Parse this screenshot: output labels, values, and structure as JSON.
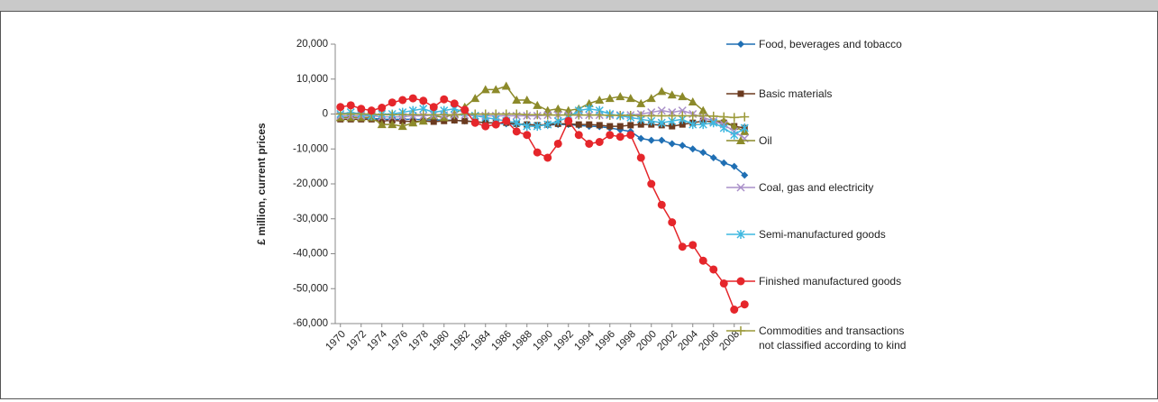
{
  "chart_data": {
    "type": "line",
    "y_label": "£ million, current prices",
    "x": [
      1970,
      1971,
      1972,
      1973,
      1974,
      1975,
      1976,
      1977,
      1978,
      1979,
      1980,
      1981,
      1982,
      1983,
      1984,
      1985,
      1986,
      1987,
      1988,
      1989,
      1990,
      1991,
      1992,
      1993,
      1994,
      1995,
      1996,
      1997,
      1998,
      1999,
      2000,
      2001,
      2002,
      2003,
      2004,
      2005,
      2006,
      2007,
      2008,
      2009
    ],
    "xlim": [
      1969.5,
      2009.5
    ],
    "xticks": [
      1970,
      1972,
      1974,
      1976,
      1978,
      1980,
      1982,
      1984,
      1986,
      1988,
      1990,
      1992,
      1994,
      1996,
      1998,
      2000,
      2002,
      2004,
      2006,
      2008
    ],
    "ylim": [
      -60000,
      20000
    ],
    "yticks": [
      {
        "value": -60000,
        "label": "-60,000"
      },
      {
        "value": -50000,
        "label": "-50,000"
      },
      {
        "value": -40000,
        "label": "-40,000"
      },
      {
        "value": -30000,
        "label": "-30,000"
      },
      {
        "value": -20000,
        "label": "-20,000"
      },
      {
        "value": -10000,
        "label": "-10,000"
      },
      0,
      {
        "value": 10000,
        "label": "10,000"
      },
      {
        "value": 20000,
        "label": "20,000"
      }
    ],
    "series": [
      {
        "name": "Food, beverages and tobacco",
        "color": "#1f6fb4",
        "marker": "diamond",
        "values": [
          -1000,
          -1000,
          -1000,
          -1200,
          -1500,
          -1500,
          -1500,
          -1500,
          -1600,
          -1700,
          -1700,
          -1800,
          -2000,
          -2200,
          -2500,
          -2600,
          -2800,
          -3000,
          -3000,
          -3200,
          -3200,
          -3000,
          -3000,
          -3300,
          -3500,
          -3600,
          -4000,
          -4500,
          -5000,
          -7000,
          -7500,
          -7500,
          -8500,
          -9000,
          -10000,
          -11000,
          -12500,
          -14000,
          -15000,
          -17500
        ]
      },
      {
        "name": "Basic materials",
        "color": "#6b3a1f",
        "marker": "square",
        "values": [
          -1500,
          -1500,
          -1500,
          -1500,
          -2000,
          -1800,
          -2000,
          -2200,
          -2000,
          -2200,
          -2000,
          -1800,
          -2000,
          -2200,
          -2500,
          -2500,
          -2500,
          -2800,
          -3000,
          -3200,
          -3000,
          -2800,
          -2800,
          -3000,
          -3000,
          -3200,
          -3500,
          -3500,
          -3200,
          -3000,
          -3000,
          -3200,
          -3500,
          -3000,
          -2500,
          -2000,
          -2200,
          -2500,
          -3500,
          -4000
        ]
      },
      {
        "name": "Oil",
        "color": "#8c8a2a",
        "marker": "triangle",
        "values": [
          -1000,
          -1000,
          -1000,
          -1000,
          -3000,
          -3000,
          -3500,
          -2500,
          -2000,
          -500,
          -1000,
          0,
          2000,
          4500,
          7000,
          7000,
          8000,
          4000,
          4000,
          2500,
          1000,
          1500,
          1000,
          1500,
          3000,
          4000,
          4500,
          5000,
          4500,
          3000,
          4500,
          6500,
          5500,
          5000,
          3500,
          1000,
          -2000,
          -2000,
          -3500,
          -5000
        ]
      },
      {
        "name": "Coal, gas and electricity",
        "color": "#a98fc9",
        "marker": "x",
        "values": [
          -500,
          -500,
          -500,
          -500,
          -800,
          -800,
          -800,
          -500,
          -500,
          -300,
          -300,
          -300,
          -300,
          -500,
          -500,
          -500,
          -500,
          -500,
          -500,
          -500,
          -300,
          -300,
          -300,
          -300,
          -300,
          -300,
          -300,
          -300,
          -300,
          0,
          500,
          1000,
          500,
          1000,
          0,
          -1000,
          -2000,
          -3000,
          -5000,
          -7000
        ]
      },
      {
        "name": "Semi-manufactured goods",
        "color": "#3fb8e0",
        "marker": "asterisk",
        "values": [
          0,
          500,
          0,
          -500,
          0,
          0,
          500,
          1000,
          1500,
          500,
          1000,
          1500,
          500,
          -500,
          -1000,
          -1500,
          -2000,
          -2500,
          -3500,
          -3500,
          -3000,
          -2000,
          -1000,
          1000,
          1500,
          1000,
          0,
          -500,
          -1000,
          -1500,
          -2000,
          -2500,
          -2000,
          -1500,
          -3000,
          -3000,
          -2500,
          -4000,
          -6000,
          -4000
        ]
      },
      {
        "name": "Finished manufactured goods",
        "color": "#e5262b",
        "marker": "circle",
        "values": [
          2000,
          2500,
          1500,
          1000,
          1800,
          3300,
          4000,
          4500,
          3800,
          2000,
          4200,
          3000,
          1200,
          -2500,
          -3500,
          -3000,
          -2000,
          -5000,
          -6000,
          -11000,
          -12500,
          -8500,
          -2000,
          -6000,
          -8500,
          -8000,
          -6000,
          -6500,
          -6000,
          -12500,
          -20000,
          -26000,
          -31000,
          -38000,
          -37500,
          -42000,
          -44500,
          -48500,
          -56000,
          -54500
        ]
      },
      {
        "name": "Commodities and transactions not classified according to kind",
        "color": "#9c9a3a",
        "marker": "plus",
        "values": [
          0,
          0,
          0,
          0,
          -200,
          -200,
          -200,
          -200,
          -200,
          -200,
          -200,
          -200,
          0,
          0,
          0,
          0,
          0,
          0,
          -200,
          -200,
          -300,
          -300,
          -300,
          -300,
          -300,
          -300,
          -400,
          -400,
          -400,
          -500,
          -500,
          -500,
          -500,
          -500,
          -500,
          -500,
          -600,
          -800,
          -1000,
          -800
        ]
      }
    ]
  }
}
